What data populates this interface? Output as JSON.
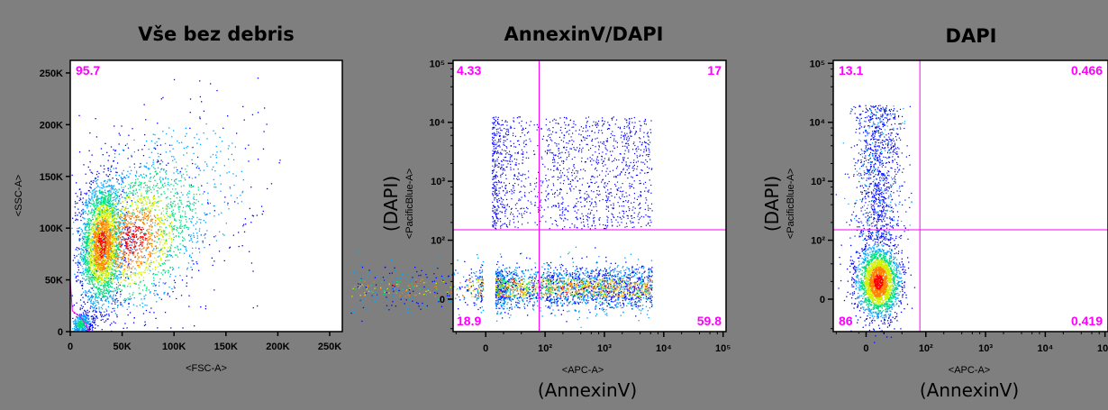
{
  "chart_data": [
    {
      "type": "scatter",
      "title": "Vše bez debris",
      "xlabel": "<FSC-A>",
      "ylabel": "<SSC-A>",
      "xlim": [
        0,
        262144
      ],
      "ylim": [
        0,
        262144
      ],
      "x_ticks": [
        0,
        50000,
        100000,
        150000,
        200000,
        250000
      ],
      "x_tick_labels": [
        "0",
        "50K",
        "100K",
        "150K",
        "200K",
        "250K"
      ],
      "y_ticks": [
        0,
        50000,
        100000,
        150000,
        200000,
        250000
      ],
      "y_tick_labels": [
        "0",
        "50K",
        "100K",
        "150K",
        "200K",
        "250K"
      ],
      "gate": {
        "type": "polygon",
        "percent": "95.7"
      },
      "density": "pseudocolor (blue-green-yellow-red)",
      "clusters": [
        {
          "x": 30000,
          "y": 85000,
          "sx": 10000,
          "sy": 30000,
          "n": 2600
        },
        {
          "x": 60000,
          "y": 90000,
          "sx": 30000,
          "sy": 33000,
          "n": 1800
        },
        {
          "x": 90000,
          "y": 125000,
          "sx": 45000,
          "sy": 45000,
          "n": 700
        },
        {
          "x": 10000,
          "y": 8000,
          "sx": 5000,
          "sy": 5000,
          "n": 350
        }
      ]
    },
    {
      "type": "scatter",
      "title": "AnnexinV/DAPI",
      "xlabel": "<APC-A>",
      "ylabel": "<PacificBlue-A>",
      "x_sublabel": "(AnnexinV)",
      "y_sublabel": "(DAPI)",
      "scale": "biexponential",
      "x_tick_labels": [
        "0",
        "10²",
        "10³",
        "10⁴",
        "10⁵"
      ],
      "y_tick_labels": [
        "0",
        "10²",
        "10³",
        "10⁴",
        "10⁵"
      ],
      "quadrant_gate": {
        "x": 90,
        "y": 150
      },
      "quadrants": [
        {
          "position": "top-left",
          "percent": "4.33"
        },
        {
          "position": "top-right",
          "percent": "17"
        },
        {
          "position": "bottom-left",
          "percent": "18.9"
        },
        {
          "position": "bottom-right",
          "percent": "59.8"
        }
      ],
      "clusters": [
        {
          "x": 500,
          "y": 20,
          "n": 3000,
          "spread": "wide"
        },
        {
          "x": 600,
          "y": 2000,
          "n": 1500,
          "spread": "wide"
        }
      ]
    },
    {
      "type": "scatter",
      "title": "DAPI",
      "xlabel": "<APC-A>",
      "ylabel": "<PacificBlue-A>",
      "x_sublabel": "(AnnexinV)",
      "y_sublabel": "(DAPI)",
      "scale": "biexponential",
      "x_tick_labels": [
        "0",
        "10²",
        "10³",
        "10⁴",
        "10⁵"
      ],
      "y_tick_labels": [
        "0",
        "10²",
        "10³",
        "10⁴",
        "10⁵"
      ],
      "quadrant_gate": {
        "x": 90,
        "y": 150
      },
      "quadrants": [
        {
          "position": "top-left",
          "percent": "13.1"
        },
        {
          "position": "top-right",
          "percent": "0.466"
        },
        {
          "position": "bottom-left",
          "percent": "86"
        },
        {
          "position": "bottom-right",
          "percent": "0.419"
        }
      ],
      "clusters": [
        {
          "x": 20,
          "y": 30,
          "n": 2500,
          "spread": "tight"
        },
        {
          "x": 20,
          "y": 1500,
          "n": 1200,
          "spread": "column"
        }
      ]
    }
  ],
  "colors": {
    "background": "#7f7f7f",
    "plot_bg": "#ffffff",
    "gate": "#ff00ff",
    "density": [
      "#0000ff",
      "#00a0ff",
      "#00e080",
      "#d0f000",
      "#ff8000",
      "#ff0000"
    ]
  }
}
